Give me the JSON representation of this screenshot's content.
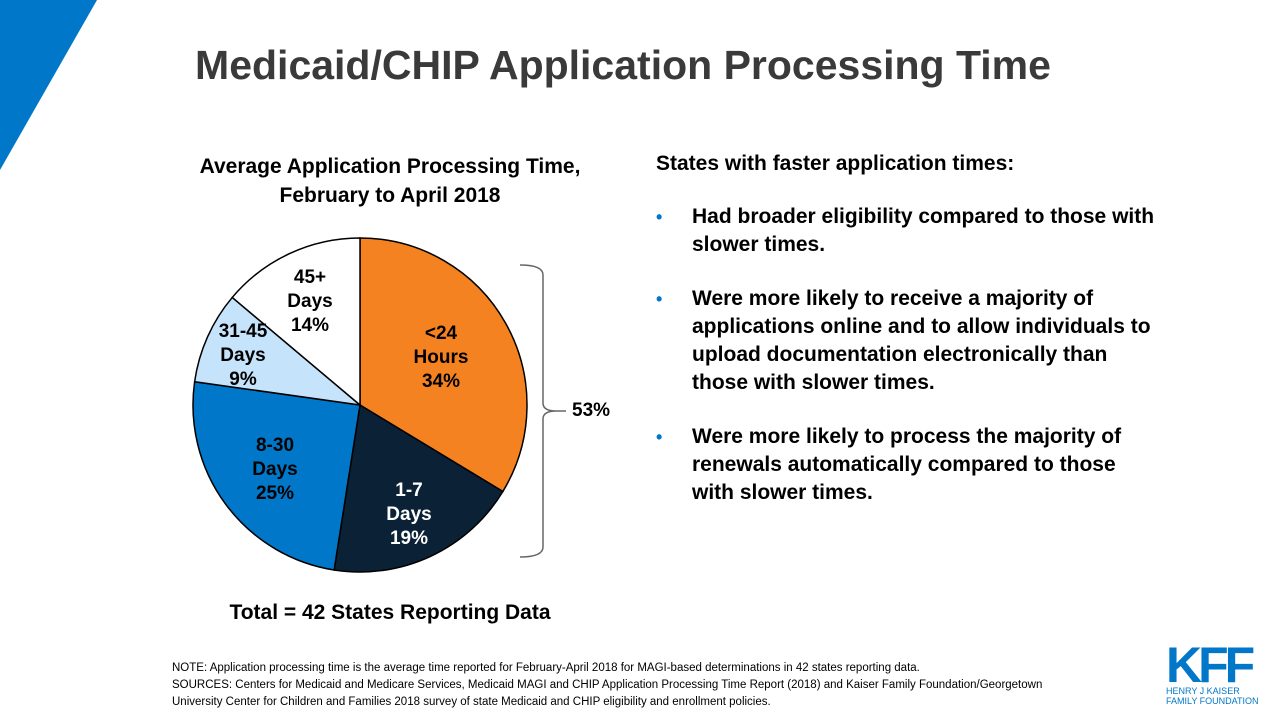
{
  "title": "Medicaid/CHIP Application Processing Time",
  "accent_color": "#0077c8",
  "chart_data": {
    "type": "pie",
    "title_lines": [
      "Average Application Processing Time,",
      "February to April 2018"
    ],
    "categories": [
      "<24 Hours",
      "1-7 Days",
      "8-30 Days",
      "31-45 Days",
      "45+ Days"
    ],
    "values": [
      34,
      19,
      25,
      9,
      14
    ],
    "slices": [
      {
        "line1": "<24",
        "line2": "Hours",
        "value": 34,
        "value_label": "34%",
        "color": "#f58220",
        "text_color": "#000000"
      },
      {
        "line1": "1-7",
        "line2": "Days",
        "value": 19,
        "value_label": "19%",
        "color": "#0b2136",
        "text_color": "#ffffff"
      },
      {
        "line1": "8-30",
        "line2": "Days",
        "value": 25,
        "value_label": "25%",
        "color": "#0077c8",
        "text_color": "#000000"
      },
      {
        "line1": "31-45",
        "line2": "Days",
        "value": 9,
        "value_label": "9%",
        "color": "#c5e3fa",
        "text_color": "#000000"
      },
      {
        "line1": "45+",
        "line2": "Days",
        "value": 14,
        "value_label": "14%",
        "color": "#ffffff",
        "text_color": "#000000"
      }
    ],
    "start": "top, clockwise",
    "bracket_annotation": "53%",
    "total_label": "Total = 42 States Reporting Data"
  },
  "right": {
    "heading": "States with faster application times:",
    "bullet_symbol": "•",
    "bullets": [
      "Had broader eligibility compared to those with slower times.",
      "Were more likely to receive a majority of applications online and to allow individuals to upload documentation electronically than those with slower times.",
      "Were more likely to process the majority of renewals automatically compared to those with slower times."
    ]
  },
  "footnote": {
    "note": "NOTE: Application processing time is the average time reported for February-April 2018 for MAGI-based determinations in 42 states reporting data.",
    "sources": "SOURCES: Centers for Medicaid and Medicare Services, Medicaid MAGI and CHIP Application Processing Time Report (2018) and Kaiser Family Foundation/Georgetown University Center for Children and Families 2018 survey of state Medicaid and CHIP eligibility and enrollment policies."
  },
  "logo": {
    "mark": "KFF",
    "line1": "HENRY J KAISER",
    "line2": "FAMILY FOUNDATION"
  }
}
